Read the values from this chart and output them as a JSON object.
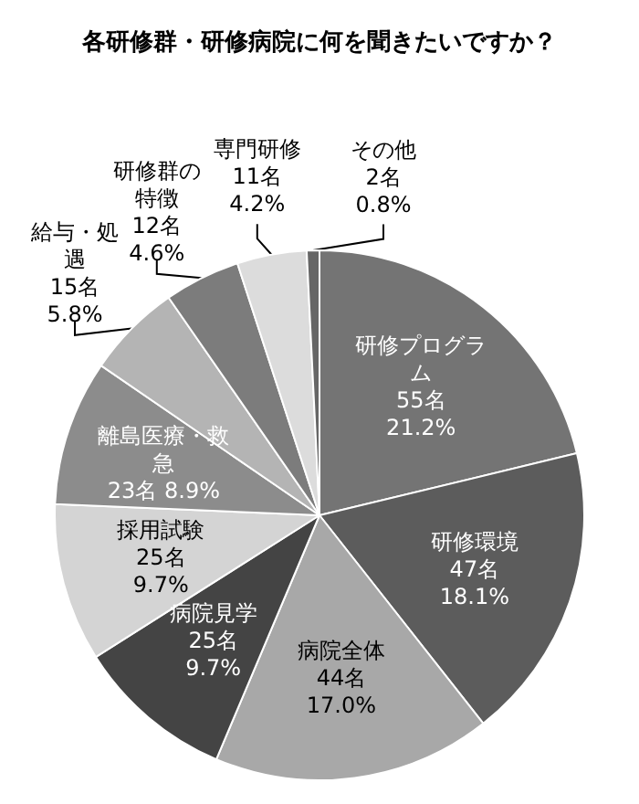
{
  "chart_data": {
    "type": "pie",
    "title": "各研修群・研修病院に何を聞きたいですか？",
    "categories": [
      "研修プログラム",
      "研修環境",
      "病院全体",
      "病院見学",
      "採用試験",
      "離島医療・救急",
      "給与・処遇",
      "研修群の特徴",
      "専門研修",
      "その他"
    ],
    "values": [
      55,
      47,
      44,
      25,
      25,
      23,
      15,
      12,
      11,
      2
    ],
    "value_labels": [
      "55名\n21.2%",
      "47名\n18.1%",
      "44名\n17.0%",
      "25名\n9.7%",
      "25名\n9.7%",
      "23名 8.9%",
      "15名\n5.8%",
      "12名\n4.6%",
      "11名\n4.2%",
      "2名\n0.8%"
    ],
    "colors": [
      "#747474",
      "#5c5c5c",
      "#a8a8a8",
      "#444444",
      "#d4d4d4",
      "#8c8c8c",
      "#b4b4b4",
      "#7c7c7c",
      "#dcdcdc",
      "#666666"
    ],
    "data_labels": true,
    "legend": false
  }
}
